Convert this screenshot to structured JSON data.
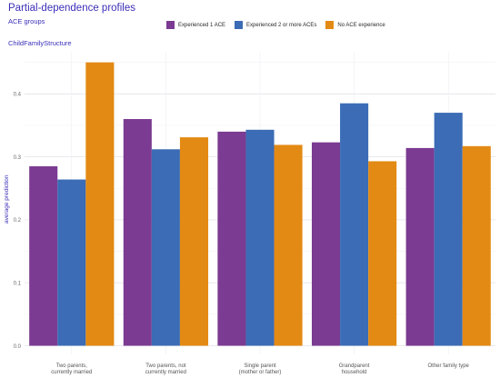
{
  "header": {
    "title": "Partial-dependence profiles",
    "subtitle": "ACE groups"
  },
  "panel": {
    "label": "ChildFamilyStructure"
  },
  "legend": {
    "items": [
      {
        "label": "Experienced 1 ACE",
        "color": "#7b3b92"
      },
      {
        "label": "Experienced 2 or more ACEs",
        "color": "#3b6cb5"
      },
      {
        "label": "No ACE experience",
        "color": "#e38a14"
      }
    ]
  },
  "chart_data": {
    "type": "bar",
    "ylabel": "average prediction",
    "ylim": [
      0,
      0.47
    ],
    "yticks": [
      0.0,
      0.1,
      0.2,
      0.3,
      0.4
    ],
    "grid": true,
    "legend_position": "top",
    "categories": [
      "Two parents,\ncurrently married",
      "Two parents, not\ncurrently married",
      "Single parent\n(mother or father)",
      "Grandparent\nhousehold",
      "Other family type"
    ],
    "series": [
      {
        "name": "Experienced 1 ACE",
        "color": "#7b3b92",
        "values": [
          0.285,
          0.36,
          0.34,
          0.323,
          0.314
        ]
      },
      {
        "name": "Experienced 2 or more ACEs",
        "color": "#3b6cb5",
        "values": [
          0.264,
          0.312,
          0.343,
          0.385,
          0.37
        ]
      },
      {
        "name": "No ACE experience",
        "color": "#e38a14",
        "values": [
          0.45,
          0.331,
          0.319,
          0.293,
          0.317
        ]
      }
    ]
  }
}
